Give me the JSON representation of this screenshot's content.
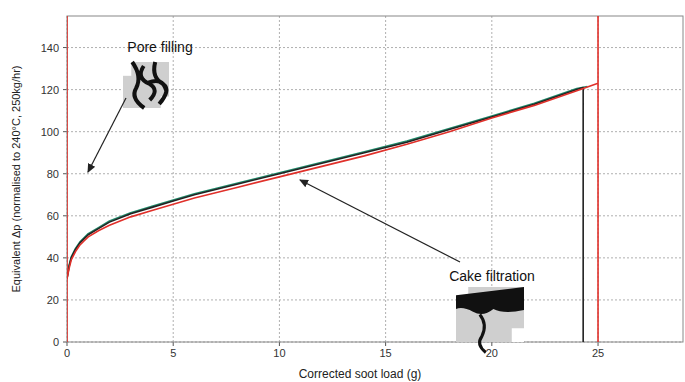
{
  "chart_data": {
    "type": "line",
    "x_label": "Corrected soot load (g)",
    "y_label": "Equivalent Δp (normalised to 240°C, 250kg/hr)",
    "annotations": [
      "Pore filling",
      "Cake filtration"
    ],
    "xlim": [
      0,
      29
    ],
    "ylim": [
      0,
      155
    ],
    "xticks": [
      0,
      5,
      10,
      15,
      20,
      25
    ],
    "yticks": [
      0,
      20,
      40,
      60,
      80,
      100,
      120,
      140
    ],
    "grid": true,
    "series": [
      {
        "color": "#1f8a6a",
        "marker": "none",
        "line_style": "solid",
        "x": [
          0,
          0.1,
          0.2,
          0.4,
          0.6,
          0.8,
          1,
          1.5,
          2,
          3,
          4,
          5,
          6,
          7,
          8,
          10,
          12,
          14,
          16,
          18,
          20,
          22,
          24,
          24.5
        ],
        "values": [
          30.5,
          36.5,
          40.5,
          44.5,
          47.5,
          49.5,
          51.5,
          54.5,
          57.5,
          61.5,
          64.5,
          67.5,
          70.5,
          73,
          75.5,
          80.5,
          85.5,
          90.5,
          95.5,
          101.5,
          107.5,
          113.5,
          120.5,
          121.5
        ]
      },
      {
        "color": "#222222",
        "marker": "none",
        "line_style": "solid",
        "x": [
          0,
          0.1,
          0.2,
          0.4,
          0.6,
          0.8,
          1,
          1.5,
          2,
          3,
          4,
          5,
          6,
          7,
          8,
          10,
          12,
          14,
          16,
          18,
          20,
          22,
          24,
          24.3,
          24.3
        ],
        "values": [
          30,
          36,
          40,
          44,
          47,
          49,
          51,
          54,
          57,
          61,
          64,
          67,
          70,
          72.5,
          75,
          80,
          85,
          90,
          95,
          101,
          107,
          113,
          120,
          121,
          0
        ]
      },
      {
        "color": "#e0302a",
        "marker": "none",
        "line_style": "solid",
        "x": [
          0,
          0.1,
          0.2,
          0.4,
          0.6,
          0.8,
          1,
          1.5,
          2,
          3,
          4,
          5,
          6,
          7,
          8,
          10,
          12,
          14,
          16,
          18,
          20,
          22,
          24,
          25
        ],
        "values": [
          30,
          35,
          39,
          43,
          46,
          48,
          50,
          53,
          55.5,
          59.5,
          62.5,
          65.5,
          68.5,
          71,
          73.5,
          78.5,
          83.5,
          88.5,
          94,
          100,
          106.5,
          112.5,
          119.5,
          123
        ]
      },
      {
        "color": "#e0302a",
        "marker": "none",
        "line_style": "solid",
        "x": [
          25,
          25
        ],
        "values": [
          0,
          155
        ]
      },
      {
        "color": "#e0302a",
        "marker": "none",
        "line_style": "solid",
        "x": [
          0,
          0
        ],
        "values": [
          0,
          155
        ]
      }
    ]
  }
}
